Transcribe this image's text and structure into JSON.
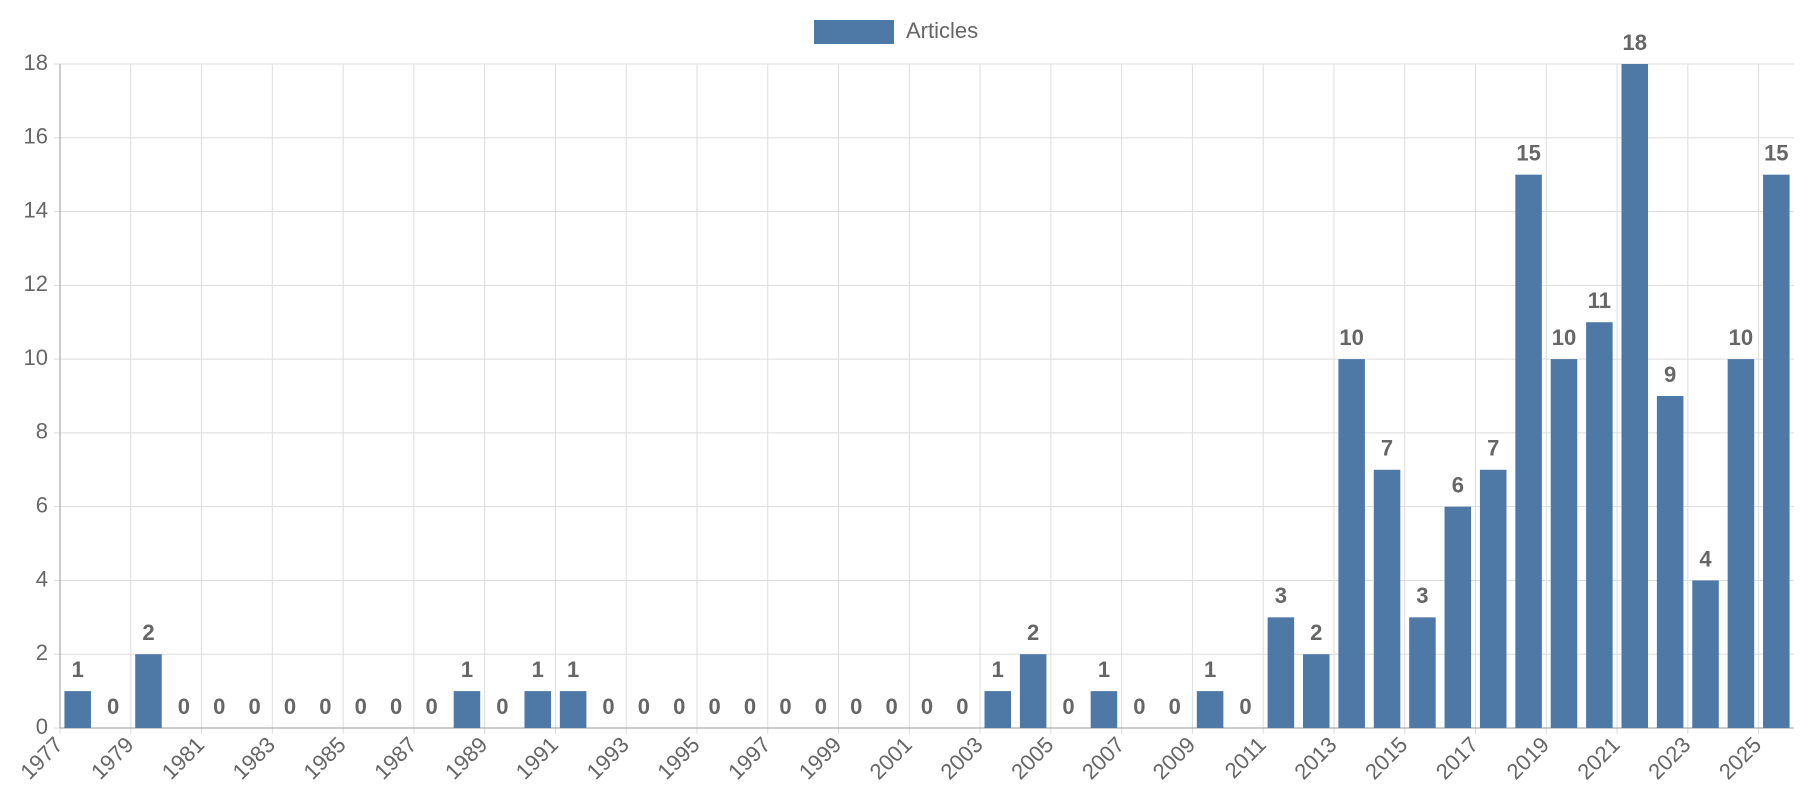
{
  "chart_data": {
    "type": "bar",
    "legend": "top",
    "grid": true,
    "categories": [
      "1977",
      null,
      "1979",
      null,
      "1981",
      null,
      "1983",
      null,
      "1985",
      null,
      "1987",
      null,
      "1989",
      null,
      "1991",
      null,
      "1993",
      null,
      "1995",
      null,
      "1997",
      null,
      "1999",
      null,
      "2001",
      null,
      "2003",
      null,
      "2005",
      null,
      "2007",
      null,
      "2009",
      null,
      "2011",
      null,
      "2013",
      null,
      "2015",
      null,
      "2017",
      null,
      "2019",
      null,
      "2021",
      null,
      "2023",
      null,
      "2025"
    ],
    "series": [
      {
        "name": "Articles",
        "color": "#4e79a7",
        "values": [
          1,
          0,
          2,
          0,
          0,
          0,
          0,
          0,
          0,
          0,
          0,
          1,
          0,
          1,
          1,
          0,
          0,
          0,
          0,
          0,
          0,
          0,
          0,
          0,
          0,
          0,
          1,
          2,
          0,
          1,
          0,
          0,
          1,
          0,
          3,
          2,
          10,
          7,
          3,
          6,
          7,
          15,
          10,
          11,
          18,
          9,
          4,
          10,
          15
        ]
      }
    ],
    "ylim": [
      0,
      18
    ],
    "yticks": [
      0,
      2,
      4,
      6,
      8,
      10,
      12,
      14,
      16,
      18
    ]
  }
}
